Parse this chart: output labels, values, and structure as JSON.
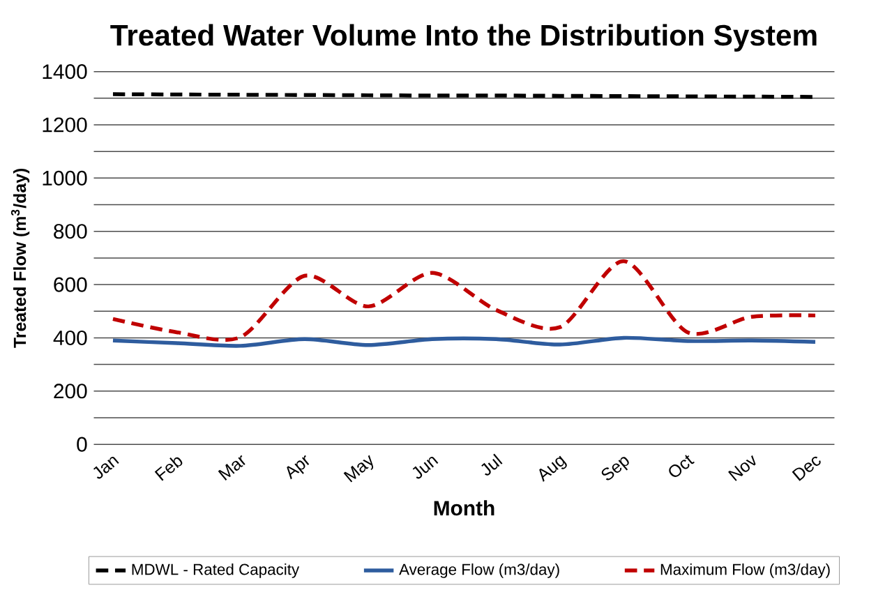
{
  "chart_data": {
    "type": "line",
    "title": "Treated Water Volume Into the Distribution System",
    "xlabel": "Month",
    "ylabel": "Treated Flow (m$^{3}$/day)",
    "categories": [
      "Jan",
      "Feb",
      "Mar",
      "Apr",
      "May",
      "Jun",
      "Jul",
      "Aug",
      "Sep",
      "Oct",
      "Nov",
      "Dec"
    ],
    "series": [
      {
        "name": "MDWL - Rated Capacity",
        "color": "#000000",
        "line_style": "dashed",
        "values": [
          1315,
          1314,
          1313,
          1312,
          1311,
          1310,
          1310,
          1309,
          1308,
          1307,
          1306,
          1305
        ]
      },
      {
        "name": "Average Flow (m3/day)",
        "color": "#2e5c9e",
        "line_style": "solid",
        "values": [
          390,
          380,
          370,
          395,
          373,
          395,
          395,
          375,
          400,
          388,
          390,
          385
        ]
      },
      {
        "name": "Maximum Flow (m3/day)",
        "color": "#c00000",
        "line_style": "dashed",
        "values": [
          471,
          421,
          403,
          633,
          518,
          644,
          505,
          440,
          688,
          421,
          479,
          484
        ]
      }
    ],
    "ylim": [
      0,
      1400
    ],
    "yticks": [
      0,
      {
        "value": 100,
        "label": null
      },
      200,
      {
        "value": 300,
        "label": null
      },
      400,
      {
        "value": 500,
        "label": null
      },
      600,
      {
        "value": 700,
        "label": null
      },
      800,
      {
        "value": 900,
        "label": null
      },
      1000,
      {
        "value": 1100,
        "label": null
      },
      1200,
      {
        "value": 1300,
        "label": null
      },
      1400
    ],
    "grid": "y",
    "legend": "bottom"
  }
}
